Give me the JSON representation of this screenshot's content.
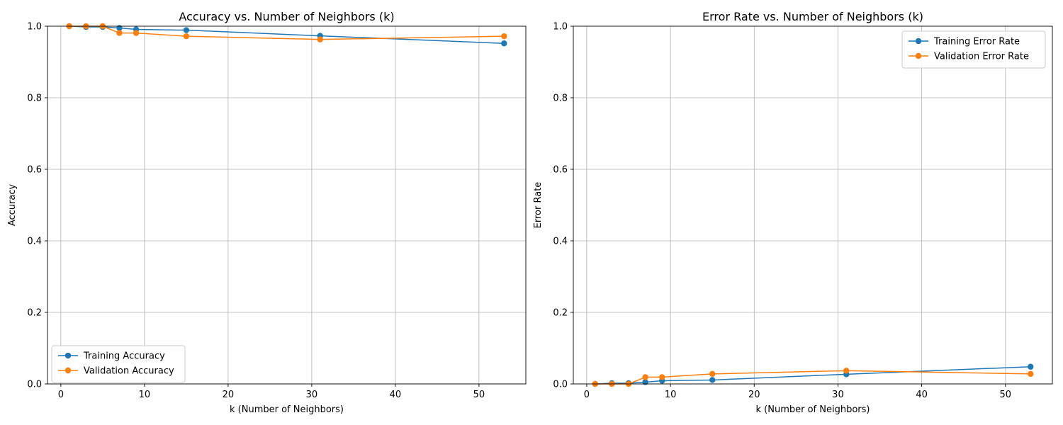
{
  "colors": {
    "training": "#1f77b4",
    "validation": "#ff7f0e",
    "grid": "#b0b0b0"
  },
  "chart_data": [
    {
      "type": "line",
      "title": "Accuracy vs. Number of Neighbors (k)",
      "xlabel": "k (Number of Neighbors)",
      "ylabel": "Accuracy",
      "xlim": [
        -1.6,
        55.6
      ],
      "ylim": [
        0,
        1
      ],
      "xticks": [
        0,
        10,
        20,
        30,
        40,
        50
      ],
      "xtick_labels": [
        "0",
        "10",
        "20",
        "30",
        "40",
        "50"
      ],
      "yticks": [
        0,
        0.2,
        0.4,
        0.6,
        0.8,
        1.0
      ],
      "ytick_labels": [
        "0.0",
        "0.2",
        "0.4",
        "0.6",
        "0.8",
        "1.0"
      ],
      "grid": true,
      "legend_position": "lower-left",
      "x": [
        1,
        3,
        5,
        7,
        9,
        15,
        31,
        53
      ],
      "series": [
        {
          "name": "Training Accuracy",
          "color_key": "training",
          "values": [
            1.0,
            0.998,
            0.998,
            0.995,
            0.991,
            0.989,
            0.973,
            0.952
          ]
        },
        {
          "name": "Validation Accuracy",
          "color_key": "validation",
          "values": [
            1.0,
            1.0,
            1.0,
            0.981,
            0.981,
            0.972,
            0.963,
            0.972
          ]
        }
      ]
    },
    {
      "type": "line",
      "title": "Error Rate vs. Number of Neighbors (k)",
      "xlabel": "k (Number of Neighbors)",
      "ylabel": "Error Rate",
      "xlim": [
        -1.6,
        55.6
      ],
      "ylim": [
        0,
        1
      ],
      "xticks": [
        0,
        10,
        20,
        30,
        40,
        50
      ],
      "xtick_labels": [
        "0",
        "10",
        "20",
        "30",
        "40",
        "50"
      ],
      "yticks": [
        0,
        0.2,
        0.4,
        0.6,
        0.8,
        1.0
      ],
      "ytick_labels": [
        "0.0",
        "0.2",
        "0.4",
        "0.6",
        "0.8",
        "1.0"
      ],
      "grid": true,
      "legend_position": "upper-right",
      "x": [
        1,
        3,
        5,
        7,
        9,
        15,
        31,
        53
      ],
      "series": [
        {
          "name": "Training Error Rate",
          "color_key": "training",
          "values": [
            0.0,
            0.002,
            0.002,
            0.005,
            0.009,
            0.011,
            0.027,
            0.048
          ]
        },
        {
          "name": "Validation Error Rate",
          "color_key": "validation",
          "values": [
            0.0,
            0.0,
            0.0,
            0.019,
            0.019,
            0.028,
            0.037,
            0.028
          ]
        }
      ]
    }
  ]
}
